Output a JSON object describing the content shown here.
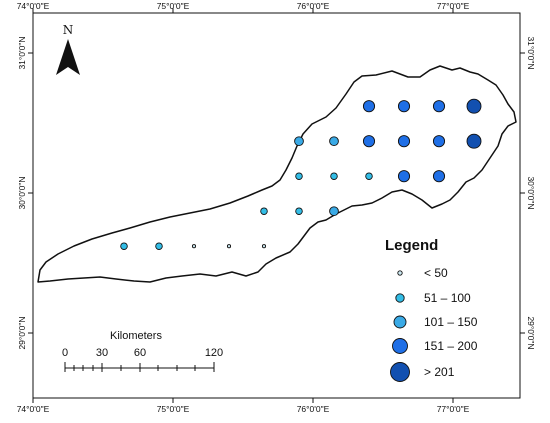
{
  "coordinates": {
    "top": [
      "74°0'0\"E",
      "75°0'0\"E",
      "76°0'0\"E",
      "77°0'0\"E"
    ],
    "bottom": [
      "74°0'0\"E",
      "75°0'0\"E",
      "76°0'0\"E",
      "77°0'0\"E"
    ],
    "left": [
      "31°0'0\"N",
      "30°0'0\"N",
      "29°0'0\"N"
    ],
    "right": [
      "31°0'0\"N",
      "30°0'0\"N",
      "29°0'0\"N"
    ]
  },
  "north_arrow": {
    "label": "N"
  },
  "legend": {
    "title": "Legend",
    "items": [
      {
        "label": "< 50",
        "color": "#cde9f2"
      },
      {
        "label": "51 – 100",
        "color": "#33bde6"
      },
      {
        "label": "101 – 150",
        "color": "#3aaae6"
      },
      {
        "label": "151 – 200",
        "color": "#1f6fe6"
      },
      {
        "label": "> 201",
        "color": "#1250b0"
      }
    ]
  },
  "scale_bar": {
    "title": "Kilometers",
    "ticks": [
      "0",
      "30",
      "60",
      "120"
    ]
  },
  "points": [
    {
      "lon": 76.4,
      "lat": 30.62,
      "class": 3
    },
    {
      "lon": 76.65,
      "lat": 30.62,
      "class": 3
    },
    {
      "lon": 76.9,
      "lat": 30.62,
      "class": 3
    },
    {
      "lon": 77.15,
      "lat": 30.62,
      "class": 4
    },
    {
      "lon": 75.9,
      "lat": 30.37,
      "class": 2
    },
    {
      "lon": 76.15,
      "lat": 30.37,
      "class": 2
    },
    {
      "lon": 76.4,
      "lat": 30.37,
      "class": 3
    },
    {
      "lon": 76.65,
      "lat": 30.37,
      "class": 3
    },
    {
      "lon": 76.9,
      "lat": 30.37,
      "class": 3
    },
    {
      "lon": 77.15,
      "lat": 30.37,
      "class": 4
    },
    {
      "lon": 75.9,
      "lat": 30.12,
      "class": 1
    },
    {
      "lon": 76.15,
      "lat": 30.12,
      "class": 1
    },
    {
      "lon": 76.4,
      "lat": 30.12,
      "class": 1
    },
    {
      "lon": 76.65,
      "lat": 30.12,
      "class": 3
    },
    {
      "lon": 76.9,
      "lat": 30.12,
      "class": 3
    },
    {
      "lon": 75.65,
      "lat": 29.87,
      "class": 1
    },
    {
      "lon": 75.9,
      "lat": 29.87,
      "class": 1
    },
    {
      "lon": 76.15,
      "lat": 29.87,
      "class": 2
    },
    {
      "lon": 74.65,
      "lat": 29.62,
      "class": 1
    },
    {
      "lon": 74.9,
      "lat": 29.62,
      "class": 1
    },
    {
      "lon": 75.15,
      "lat": 29.62,
      "class": 0
    },
    {
      "lon": 75.4,
      "lat": 29.62,
      "class": 0
    },
    {
      "lon": 75.65,
      "lat": 29.62,
      "class": 0
    }
  ]
}
